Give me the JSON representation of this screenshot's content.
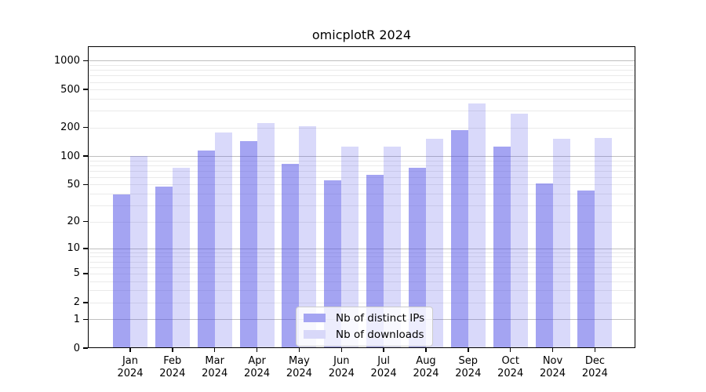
{
  "chart_data": {
    "type": "bar",
    "title": "omicplotR 2024",
    "categories": [
      "Jan",
      "Feb",
      "Mar",
      "Apr",
      "May",
      "Jun",
      "Jul",
      "Aug",
      "Sep",
      "Oct",
      "Nov",
      "Dec"
    ],
    "x_tick_year": "2024",
    "series": [
      {
        "name": "Nb of distinct IPs",
        "color": "rgba(80,80,230,0.52)",
        "solid_color": "#A4A4F2",
        "values": [
          39,
          48,
          115,
          145,
          83,
          56,
          63,
          75,
          189,
          126,
          51,
          43
        ]
      },
      {
        "name": "Nb of downloads",
        "color": "rgba(80,80,230,0.22)",
        "solid_color": "#D8D8F9",
        "values": [
          100,
          75,
          178,
          221,
          208,
          127,
          127,
          153,
          358,
          278,
          151,
          154
        ]
      }
    ],
    "y_scale": "log10(value+1)",
    "y_ticks": [
      0,
      1,
      2,
      5,
      10,
      20,
      50,
      100,
      200,
      500,
      1000
    ],
    "y_range_top": 1400,
    "grid": {
      "major_at": [
        1,
        10,
        100,
        1000
      ],
      "major_color": "#bfbfbf",
      "minor_color": "#eaeaea"
    },
    "legend_position": "bottom-center",
    "frame_color": "#000000"
  }
}
